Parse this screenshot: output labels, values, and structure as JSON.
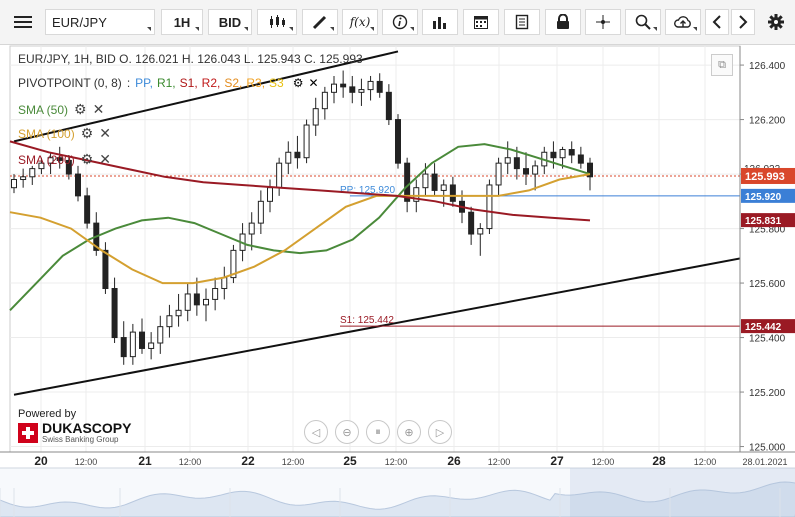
{
  "toolbar": {
    "menu_icon": "hamburger-icon",
    "symbol": "EUR/JPY",
    "timeframe": "1H",
    "price_type": "BID",
    "icons": [
      "candlestick-icon",
      "pen-icon",
      "function-icon",
      "info-icon",
      "bar-chart-icon",
      "calendar-icon",
      "document-icon",
      "lock-icon",
      "crosshair-icon",
      "zoom-icon",
      "cloud-upload-icon",
      "chevron-left-icon",
      "chevron-right-icon",
      "gear-icon"
    ],
    "function_label": "f(x)"
  },
  "header": {
    "info": "EUR/JPY, 1H, BID   O. 126.021 H. 126.043 L. 125.943 C. 125.993"
  },
  "indicators": {
    "pivot": {
      "name": "PIVOTPOINT (0, 8)",
      "sep": ":",
      "items": [
        {
          "label": "PP,",
          "color": "#3d8ad9"
        },
        {
          "label": "R1,",
          "color": "#3a8a2e"
        },
        {
          "label": "S1,",
          "color": "#b01818"
        },
        {
          "label": "R2,",
          "color": "#c01818"
        },
        {
          "label": "S2,",
          "color": "#e38c1e"
        },
        {
          "label": "R3,",
          "color": "#f0a020"
        },
        {
          "label": "S3",
          "color": "#e8c010"
        }
      ]
    },
    "sma50": {
      "label": "SMA (50)",
      "color": "#4a8a3a"
    },
    "sma100": {
      "label": "SMA (100)",
      "color": "#d4a030"
    },
    "sma200": {
      "label": "SMA (200)",
      "color": "#9a1a24"
    }
  },
  "logo": {
    "powered": "Powered by",
    "brand": "DUKASCOPY",
    "sub": "Swiss Banking Group"
  },
  "chart_data": {
    "type": "candlestick",
    "symbol": "EUR/JPY",
    "timeframe": "1H",
    "ylim": [
      124.98,
      126.47
    ],
    "y_ticks": [
      "126.400",
      "126.200",
      "126.000",
      "125.800",
      "125.600",
      "125.400",
      "125.200",
      "125.000"
    ],
    "x_ticks": [
      "20",
      "12:00",
      "21",
      "12:00",
      "22",
      "12:00",
      "25",
      "12:00",
      "26",
      "12:00",
      "27",
      "12:00",
      "28",
      "12:00",
      "28.01.2021"
    ],
    "last_price": {
      "value": "125.993",
      "color": "#d9472b"
    },
    "price_labels": [
      {
        "value": "125.920",
        "color": "#3b7fd6"
      },
      {
        "value": "125.831",
        "color": "#9a1a24"
      },
      {
        "value": "125.442",
        "color": "#9a1a24"
      }
    ],
    "hidden_label": "126.022",
    "line_labels": [
      {
        "text": "PP: 125.920",
        "value": 125.92,
        "color": "#3d8ad9"
      },
      {
        "text": "S1: 125.442",
        "value": 125.442,
        "color": "#9a1a24"
      }
    ],
    "candles": [
      {
        "o": 125.95,
        "h": 126.0,
        "l": 125.93,
        "c": 125.98
      },
      {
        "o": 125.98,
        "h": 126.02,
        "l": 125.95,
        "c": 125.99
      },
      {
        "o": 125.99,
        "h": 126.03,
        "l": 125.96,
        "c": 126.02
      },
      {
        "o": 126.02,
        "h": 126.06,
        "l": 126.0,
        "c": 126.04
      },
      {
        "o": 126.04,
        "h": 126.08,
        "l": 126.0,
        "c": 126.06
      },
      {
        "o": 126.06,
        "h": 126.1,
        "l": 126.02,
        "c": 126.05
      },
      {
        "o": 126.05,
        "h": 126.07,
        "l": 125.98,
        "c": 126.0
      },
      {
        "o": 126.0,
        "h": 126.03,
        "l": 125.9,
        "c": 125.92
      },
      {
        "o": 125.92,
        "h": 125.95,
        "l": 125.8,
        "c": 125.82
      },
      {
        "o": 125.82,
        "h": 125.86,
        "l": 125.7,
        "c": 125.72
      },
      {
        "o": 125.72,
        "h": 125.75,
        "l": 125.56,
        "c": 125.58
      },
      {
        "o": 125.58,
        "h": 125.62,
        "l": 125.38,
        "c": 125.4
      },
      {
        "o": 125.4,
        "h": 125.46,
        "l": 125.3,
        "c": 125.33
      },
      {
        "o": 125.33,
        "h": 125.45,
        "l": 125.3,
        "c": 125.42
      },
      {
        "o": 125.42,
        "h": 125.47,
        "l": 125.34,
        "c": 125.36
      },
      {
        "o": 125.36,
        "h": 125.42,
        "l": 125.32,
        "c": 125.38
      },
      {
        "o": 125.38,
        "h": 125.48,
        "l": 125.34,
        "c": 125.44
      },
      {
        "o": 125.44,
        "h": 125.52,
        "l": 125.4,
        "c": 125.48
      },
      {
        "o": 125.48,
        "h": 125.56,
        "l": 125.44,
        "c": 125.5
      },
      {
        "o": 125.5,
        "h": 125.6,
        "l": 125.46,
        "c": 125.56
      },
      {
        "o": 125.56,
        "h": 125.62,
        "l": 125.48,
        "c": 125.52
      },
      {
        "o": 125.52,
        "h": 125.58,
        "l": 125.46,
        "c": 125.54
      },
      {
        "o": 125.54,
        "h": 125.62,
        "l": 125.5,
        "c": 125.58
      },
      {
        "o": 125.58,
        "h": 125.66,
        "l": 125.54,
        "c": 125.62
      },
      {
        "o": 125.62,
        "h": 125.74,
        "l": 125.6,
        "c": 125.72
      },
      {
        "o": 125.72,
        "h": 125.82,
        "l": 125.68,
        "c": 125.78
      },
      {
        "o": 125.78,
        "h": 125.86,
        "l": 125.72,
        "c": 125.82
      },
      {
        "o": 125.82,
        "h": 125.94,
        "l": 125.78,
        "c": 125.9
      },
      {
        "o": 125.9,
        "h": 125.98,
        "l": 125.86,
        "c": 125.95
      },
      {
        "o": 125.95,
        "h": 126.06,
        "l": 125.92,
        "c": 126.04
      },
      {
        "o": 126.04,
        "h": 126.12,
        "l": 126.0,
        "c": 126.08
      },
      {
        "o": 126.08,
        "h": 126.14,
        "l": 126.02,
        "c": 126.06
      },
      {
        "o": 126.06,
        "h": 126.2,
        "l": 126.04,
        "c": 126.18
      },
      {
        "o": 126.18,
        "h": 126.28,
        "l": 126.14,
        "c": 126.24
      },
      {
        "o": 126.24,
        "h": 126.32,
        "l": 126.2,
        "c": 126.3
      },
      {
        "o": 126.3,
        "h": 126.36,
        "l": 126.26,
        "c": 126.33
      },
      {
        "o": 126.33,
        "h": 126.38,
        "l": 126.28,
        "c": 126.32
      },
      {
        "o": 126.32,
        "h": 126.36,
        "l": 126.26,
        "c": 126.3
      },
      {
        "o": 126.3,
        "h": 126.35,
        "l": 126.25,
        "c": 126.31
      },
      {
        "o": 126.31,
        "h": 126.36,
        "l": 126.27,
        "c": 126.34
      },
      {
        "o": 126.34,
        "h": 126.37,
        "l": 126.28,
        "c": 126.3
      },
      {
        "o": 126.3,
        "h": 126.33,
        "l": 126.18,
        "c": 126.2
      },
      {
        "o": 126.2,
        "h": 126.22,
        "l": 126.02,
        "c": 126.04
      },
      {
        "o": 126.04,
        "h": 126.06,
        "l": 125.86,
        "c": 125.9
      },
      {
        "o": 125.9,
        "h": 125.98,
        "l": 125.86,
        "c": 125.95
      },
      {
        "o": 125.95,
        "h": 126.04,
        "l": 125.92,
        "c": 126.0
      },
      {
        "o": 126.0,
        "h": 126.04,
        "l": 125.92,
        "c": 125.94
      },
      {
        "o": 125.94,
        "h": 125.98,
        "l": 125.88,
        "c": 125.96
      },
      {
        "o": 125.96,
        "h": 125.99,
        "l": 125.88,
        "c": 125.9
      },
      {
        "o": 125.9,
        "h": 125.94,
        "l": 125.82,
        "c": 125.86
      },
      {
        "o": 125.86,
        "h": 125.88,
        "l": 125.74,
        "c": 125.78
      },
      {
        "o": 125.78,
        "h": 125.82,
        "l": 125.7,
        "c": 125.8
      },
      {
        "o": 125.8,
        "h": 125.98,
        "l": 125.78,
        "c": 125.96
      },
      {
        "o": 125.96,
        "h": 126.06,
        "l": 125.92,
        "c": 126.04
      },
      {
        "o": 126.04,
        "h": 126.12,
        "l": 126.0,
        "c": 126.06
      },
      {
        "o": 126.06,
        "h": 126.1,
        "l": 125.98,
        "c": 126.02
      },
      {
        "o": 126.02,
        "h": 126.08,
        "l": 125.96,
        "c": 126.0
      },
      {
        "o": 126.0,
        "h": 126.05,
        "l": 125.94,
        "c": 126.03
      },
      {
        "o": 126.03,
        "h": 126.1,
        "l": 126.0,
        "c": 126.08
      },
      {
        "o": 126.08,
        "h": 126.12,
        "l": 126.02,
        "c": 126.06
      },
      {
        "o": 126.06,
        "h": 126.1,
        "l": 126.02,
        "c": 126.09
      },
      {
        "o": 126.09,
        "h": 126.12,
        "l": 126.04,
        "c": 126.07
      },
      {
        "o": 126.07,
        "h": 126.1,
        "l": 126.02,
        "c": 126.04
      },
      {
        "o": 126.04,
        "h": 126.06,
        "l": 125.94,
        "c": 125.99
      }
    ],
    "sma": [
      {
        "name": "SMA (50)",
        "color": "#4a8a3a",
        "values": [
          125.5,
          125.6,
          125.7,
          125.76,
          125.8,
          125.83,
          125.84,
          125.82,
          125.78,
          125.74,
          125.72,
          125.71,
          125.72,
          125.76,
          125.84,
          125.95,
          126.04,
          126.1,
          126.11,
          126.09,
          126.06,
          126.03,
          126.0
        ]
      },
      {
        "name": "SMA (100)",
        "color": "#d4a030",
        "values": [
          125.86,
          125.84,
          125.8,
          125.72,
          125.65,
          125.6,
          125.6,
          125.62,
          125.66,
          125.72,
          125.8,
          125.88,
          125.92,
          125.92,
          125.92,
          125.92,
          125.92,
          125.94,
          125.98,
          126.0
        ]
      },
      {
        "name": "SMA (200)",
        "color": "#9a1a24",
        "values": [
          126.12,
          126.08,
          126.05,
          126.02,
          125.99,
          125.97,
          125.96,
          125.95,
          125.94,
          125.93,
          125.92,
          125.9,
          125.87,
          125.85,
          125.84,
          125.83
        ]
      }
    ],
    "trendlines": [
      {
        "from": [
          0,
          126.12
        ],
        "to": [
          42,
          126.45
        ],
        "color": "#111"
      },
      {
        "from": [
          0,
          125.19
        ],
        "to": [
          100,
          125.82
        ],
        "color": "#111"
      }
    ]
  }
}
